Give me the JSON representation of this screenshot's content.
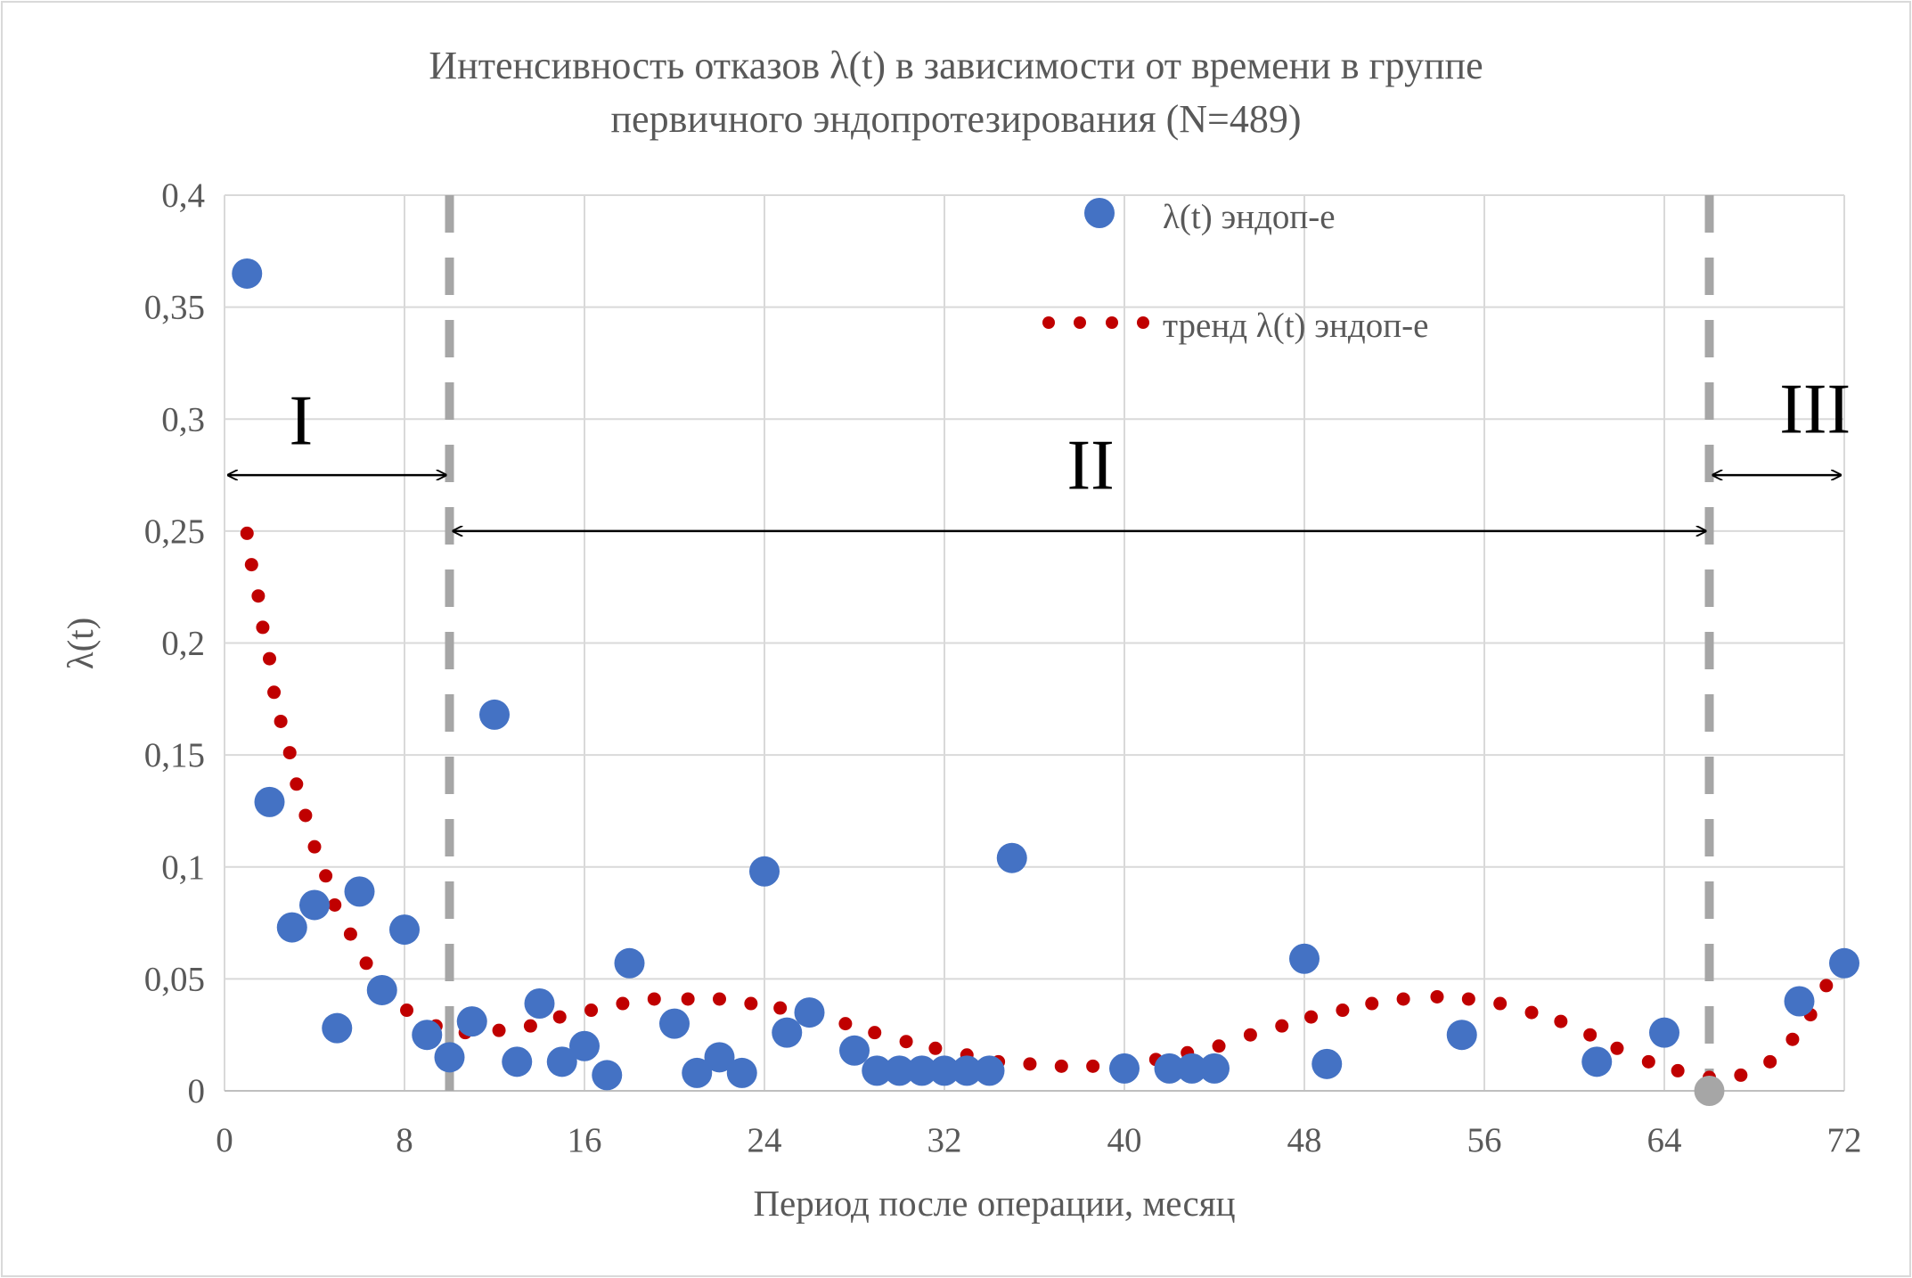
{
  "chart_data": {
    "type": "scatter",
    "title_lines": [
      "Интенсивность отказов λ(t) в зависимости от времени в группе",
      "первичного эндопротезирования (N=489)"
    ],
    "xlabel": "Период после операции, месяц",
    "ylabel": "λ(t)",
    "xlim": [
      0,
      72
    ],
    "ylim": [
      0,
      0.4
    ],
    "x_ticks": [
      "0",
      "8",
      "16",
      "24",
      "32",
      "40",
      "48",
      "56",
      "64",
      "72"
    ],
    "y_ticks": [
      "0",
      "0,05",
      "0,1",
      "0,15",
      "0,2",
      "0,25",
      "0,3",
      "0,35",
      "0,4"
    ],
    "grid": true,
    "legend_placement": "top-center",
    "colors": {
      "points": "#4472C4",
      "trend": "#C00000",
      "grid": "#D9D9D9",
      "divider": "#A6A6A6"
    },
    "series": [
      {
        "name": "λ(t) эндоп-е",
        "style": "markers",
        "points": [
          [
            1,
            0.365
          ],
          [
            2,
            0.129
          ],
          [
            3,
            0.073
          ],
          [
            4,
            0.083
          ],
          [
            5,
            0.028
          ],
          [
            6,
            0.089
          ],
          [
            7,
            0.045
          ],
          [
            8,
            0.072
          ],
          [
            9,
            0.025
          ],
          [
            10,
            0.015
          ],
          [
            11,
            0.031
          ],
          [
            12,
            0.168
          ],
          [
            13,
            0.013
          ],
          [
            14,
            0.039
          ],
          [
            15,
            0.013
          ],
          [
            16,
            0.02
          ],
          [
            17,
            0.007
          ],
          [
            18,
            0.057
          ],
          [
            20,
            0.03
          ],
          [
            21,
            0.008
          ],
          [
            22,
            0.015
          ],
          [
            23,
            0.008
          ],
          [
            24,
            0.098
          ],
          [
            25,
            0.026
          ],
          [
            26,
            0.035
          ],
          [
            28,
            0.018
          ],
          [
            29,
            0.009
          ],
          [
            30,
            0.009
          ],
          [
            31,
            0.009
          ],
          [
            32,
            0.009
          ],
          [
            33,
            0.009
          ],
          [
            34,
            0.009
          ],
          [
            35,
            0.104
          ],
          [
            40,
            0.01
          ],
          [
            42,
            0.01
          ],
          [
            43,
            0.01
          ],
          [
            44,
            0.01
          ],
          [
            48,
            0.059
          ],
          [
            49,
            0.012
          ],
          [
            55,
            0.025
          ],
          [
            61,
            0.013
          ],
          [
            64,
            0.026
          ],
          [
            66,
            0
          ],
          [
            70,
            0.04
          ],
          [
            72,
            0.057
          ]
        ]
      },
      {
        "name": "тренд λ(t) эндоп-е",
        "style": "dotted-line",
        "points": [
          [
            1.0,
            0.249
          ],
          [
            1.2,
            0.235
          ],
          [
            1.5,
            0.221
          ],
          [
            1.7,
            0.207
          ],
          [
            2.0,
            0.193
          ],
          [
            2.2,
            0.178
          ],
          [
            2.5,
            0.165
          ],
          [
            2.9,
            0.151
          ],
          [
            3.2,
            0.137
          ],
          [
            3.6,
            0.123
          ],
          [
            4.0,
            0.109
          ],
          [
            4.5,
            0.096
          ],
          [
            4.9,
            0.083
          ],
          [
            5.6,
            0.07
          ],
          [
            6.3,
            0.057
          ],
          [
            7.2,
            0.046
          ],
          [
            8.1,
            0.036
          ],
          [
            9.4,
            0.029
          ],
          [
            10.7,
            0.026
          ],
          [
            12.2,
            0.027
          ],
          [
            13.6,
            0.029
          ],
          [
            14.9,
            0.033
          ],
          [
            16.3,
            0.036
          ],
          [
            17.7,
            0.039
          ],
          [
            19.1,
            0.041
          ],
          [
            20.6,
            0.041
          ],
          [
            22.0,
            0.041
          ],
          [
            23.4,
            0.039
          ],
          [
            24.7,
            0.037
          ],
          [
            26.1,
            0.034
          ],
          [
            27.6,
            0.03
          ],
          [
            28.9,
            0.026
          ],
          [
            30.3,
            0.022
          ],
          [
            31.6,
            0.019
          ],
          [
            33.0,
            0.016
          ],
          [
            34.4,
            0.013
          ],
          [
            35.8,
            0.012
          ],
          [
            37.2,
            0.011
          ],
          [
            38.6,
            0.011
          ],
          [
            40.0,
            0.012
          ],
          [
            41.4,
            0.014
          ],
          [
            42.8,
            0.017
          ],
          [
            44.2,
            0.02
          ],
          [
            45.6,
            0.025
          ],
          [
            47.0,
            0.029
          ],
          [
            48.3,
            0.033
          ],
          [
            49.7,
            0.036
          ],
          [
            51.0,
            0.039
          ],
          [
            52.4,
            0.041
          ],
          [
            53.9,
            0.042
          ],
          [
            55.3,
            0.041
          ],
          [
            56.7,
            0.039
          ],
          [
            58.1,
            0.035
          ],
          [
            59.4,
            0.031
          ],
          [
            60.7,
            0.025
          ],
          [
            61.9,
            0.019
          ],
          [
            63.3,
            0.013
          ],
          [
            64.6,
            0.009
          ],
          [
            66.0,
            0.006
          ],
          [
            67.4,
            0.007
          ],
          [
            68.7,
            0.013
          ],
          [
            69.7,
            0.023
          ],
          [
            70.5,
            0.034
          ],
          [
            71.2,
            0.047
          ],
          [
            71.8,
            0.06
          ]
        ]
      }
    ],
    "dividers_x": [
      10,
      66
    ],
    "annotations": [
      {
        "label": "I",
        "from": 0,
        "to": 10,
        "arrow_y": 0.275,
        "label_x": 3.4,
        "label_y": 0.3
      },
      {
        "label": "II",
        "from": 10,
        "to": 66,
        "arrow_y": 0.25,
        "label_x": 38.5,
        "label_y": 0.28
      },
      {
        "label": "III",
        "from": 66,
        "to": 72,
        "arrow_y": 0.275,
        "label_x": 70.7,
        "label_y": 0.305
      }
    ]
  }
}
